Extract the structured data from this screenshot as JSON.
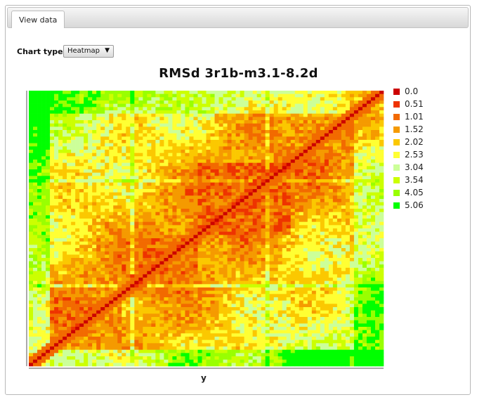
{
  "tabs": [
    {
      "label": "View data"
    }
  ],
  "controls": {
    "chart_type_label": "Chart type",
    "chart_type_value": "Heatmap"
  },
  "chart_data": {
    "type": "heatmap",
    "title": "RMSd 3r1b-m3.1-8.2d",
    "xlabel": "y",
    "ylabel": "",
    "grid_size": 84,
    "legend": [
      {
        "label": "0.0",
        "color": "#cc0000"
      },
      {
        "label": "0.51",
        "color": "#ee3300"
      },
      {
        "label": "1.01",
        "color": "#f26a00"
      },
      {
        "label": "1.52",
        "color": "#f59a00"
      },
      {
        "label": "2.02",
        "color": "#fbc800"
      },
      {
        "label": "2.53",
        "color": "#ffff33"
      },
      {
        "label": "3.04",
        "color": "#ccff99"
      },
      {
        "label": "3.54",
        "color": "#ccff00"
      },
      {
        "label": "4.05",
        "color": "#99ff00"
      },
      {
        "label": "5.06",
        "color": "#00ff00"
      }
    ],
    "legend_position": "right"
  }
}
